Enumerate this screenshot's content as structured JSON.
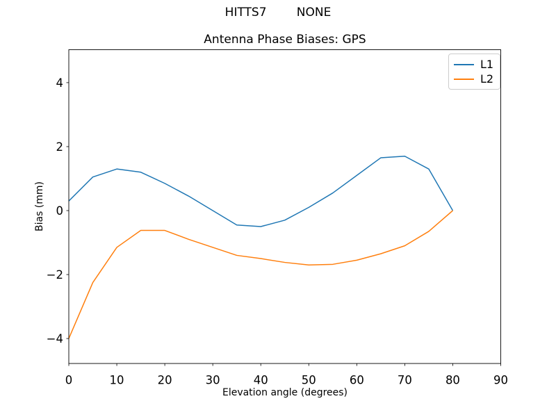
{
  "figure": {
    "suptitle": "HITTS7        NONE",
    "background": "#ffffff"
  },
  "chart_data": {
    "type": "line",
    "title": "Antenna Phase Biases: GPS",
    "xlabel": "Elevation angle (degrees)",
    "ylabel": "Bias (mm)",
    "x": [
      0,
      5,
      10,
      15,
      20,
      25,
      30,
      35,
      40,
      45,
      50,
      55,
      60,
      65,
      70,
      75,
      80
    ],
    "series": [
      {
        "name": "L1",
        "color": "#1f77b4",
        "values": [
          0.3,
          1.05,
          1.3,
          1.2,
          0.85,
          0.45,
          0.0,
          -0.45,
          -0.5,
          -0.3,
          0.1,
          0.55,
          1.1,
          1.65,
          1.7,
          1.3,
          0.0
        ]
      },
      {
        "name": "L2",
        "color": "#ff7f0e",
        "values": [
          -4.0,
          -2.25,
          -1.15,
          -0.62,
          -0.62,
          -0.9,
          -1.15,
          -1.4,
          -1.5,
          -1.62,
          -1.7,
          -1.68,
          -1.55,
          -1.35,
          -1.1,
          -0.65,
          0.0
        ]
      }
    ],
    "xticks": [
      0,
      10,
      20,
      30,
      40,
      50,
      60,
      70,
      80,
      90
    ],
    "yticks": [
      -4,
      -2,
      0,
      2,
      4
    ],
    "xlim": [
      0,
      90
    ],
    "ylim": [
      -4.78,
      5.03
    ],
    "grid": false,
    "legend": {
      "position": "upper right",
      "entries": [
        "L1",
        "L2"
      ]
    }
  }
}
